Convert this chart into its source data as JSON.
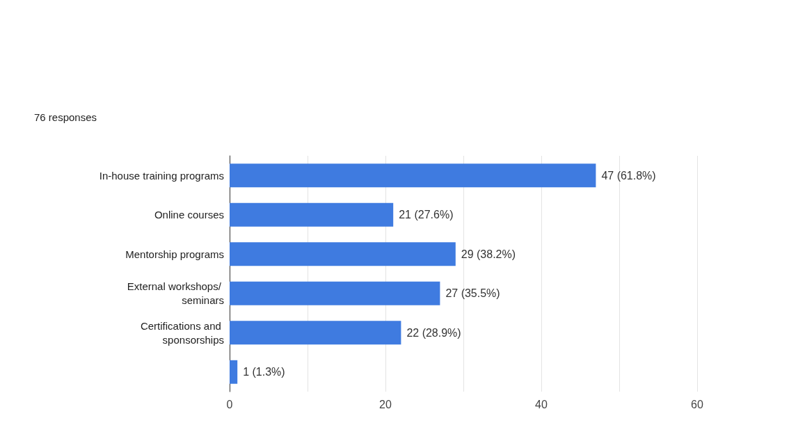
{
  "chart_data": {
    "type": "bar",
    "orientation": "horizontal",
    "title": "76 responses",
    "categories": [
      "In-house training programs",
      "Online courses",
      "Mentorship programs",
      "External workshops/ seminars",
      "Certifications and sponsorships",
      null
    ],
    "values": [
      47,
      21,
      29,
      27,
      22,
      1
    ],
    "value_labels": [
      "47 (61.8%)",
      "21 (27.6%)",
      "29 (38.2%)",
      "27 (35.5%)",
      "22 (28.9%)",
      "1 (1.3%)"
    ],
    "color": "#3f7be0",
    "xlim": [
      0,
      60
    ],
    "xticks": [
      0,
      {
        "value": 10,
        "label": null
      },
      20,
      {
        "value": 30,
        "label": null
      },
      40,
      {
        "value": 50,
        "label": null
      },
      60
    ],
    "grid": "x"
  }
}
